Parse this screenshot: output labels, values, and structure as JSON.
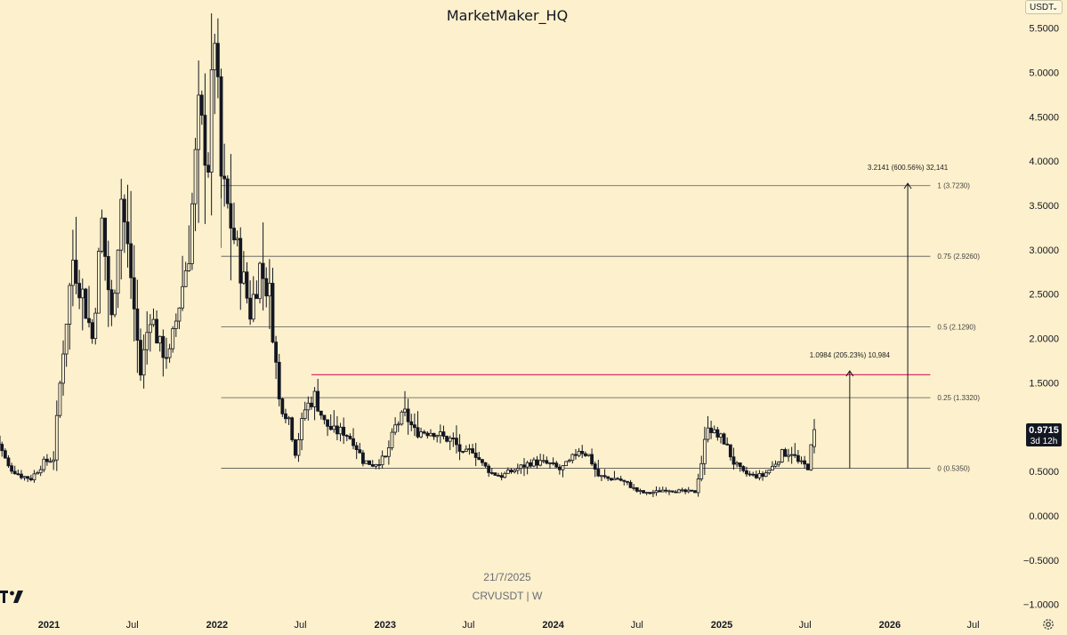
{
  "header": {
    "title": "MarketMaker_HQ",
    "currency": "USDT"
  },
  "footer": {
    "date": "21/7/2025",
    "symbol": "CRVUSDT | W"
  },
  "price_badge": {
    "price": "0.9715",
    "countdown": "3d 12h"
  },
  "colors": {
    "background": "#fdf0cc",
    "candle": "#131722",
    "resistance": "#e0306a",
    "grid_line": "#555555",
    "axis_text": "#131722"
  },
  "icons": {
    "logo": "tradingview-logo-icon",
    "settings": "gear-icon",
    "dropdown": "chevron-down-icon"
  },
  "chart_data": {
    "type": "candlestick",
    "symbol": "CRVUSDT",
    "timeframe": "W",
    "grid": false,
    "ylim": [
      -1.1,
      5.75
    ],
    "y_ticks": [
      "5.5000",
      "5.0000",
      "4.5000",
      "4.0000",
      "3.5000",
      "3.0000",
      "2.5000",
      "2.0000",
      "1.5000",
      "1.0000",
      "0.5000",
      "0.0000",
      "−0.5000",
      "−1.0000"
    ],
    "y_tick_values": [
      5.5,
      5.0,
      4.5,
      4.0,
      3.5,
      3.0,
      2.5,
      2.0,
      1.5,
      1.0,
      0.5,
      0.0,
      -0.5,
      -1.0
    ],
    "x_ticks": [
      {
        "label": "2021",
        "date": "2021-01-01"
      },
      {
        "label": "Jul",
        "date": "2021-07-01"
      },
      {
        "label": "2022",
        "date": "2022-01-01"
      },
      {
        "label": "Jul",
        "date": "2022-07-01"
      },
      {
        "label": "2023",
        "date": "2023-01-01"
      },
      {
        "label": "Jul",
        "date": "2023-07-01"
      },
      {
        "label": "2024",
        "date": "2024-01-01"
      },
      {
        "label": "Jul",
        "date": "2024-07-01"
      },
      {
        "label": "2025",
        "date": "2025-01-01"
      },
      {
        "label": "Jul",
        "date": "2025-07-01"
      },
      {
        "label": "2026",
        "date": "2026-01-01"
      },
      {
        "label": "Jul",
        "date": "2026-07-01"
      }
    ],
    "price_path": [
      [
        "2020-09-07",
        0.9
      ],
      [
        "2020-10-05",
        0.55
      ],
      [
        "2020-11-02",
        0.45
      ],
      [
        "2020-11-23",
        0.42
      ],
      [
        "2020-12-21",
        0.6
      ],
      [
        "2021-01-11",
        0.65
      ],
      [
        "2021-02-01",
        1.9
      ],
      [
        "2021-02-22",
        2.9
      ],
      [
        "2021-03-15",
        2.5
      ],
      [
        "2021-04-05",
        2.0
      ],
      [
        "2021-04-26",
        3.3
      ],
      [
        "2021-05-17",
        2.2
      ],
      [
        "2021-06-07",
        3.6
      ],
      [
        "2021-06-28",
        2.7
      ],
      [
        "2021-07-19",
        1.6
      ],
      [
        "2021-08-09",
        2.3
      ],
      [
        "2021-08-30",
        1.9
      ],
      [
        "2021-09-20",
        1.8
      ],
      [
        "2021-10-11",
        2.4
      ],
      [
        "2021-11-01",
        3.0
      ],
      [
        "2021-11-22",
        4.5
      ],
      [
        "2021-12-13",
        4.0
      ],
      [
        "2021-12-27",
        5.5
      ],
      [
        "2022-01-10",
        3.8
      ],
      [
        "2022-01-31",
        3.3
      ],
      [
        "2022-02-21",
        2.8
      ],
      [
        "2022-03-14",
        2.3
      ],
      [
        "2022-04-04",
        2.8
      ],
      [
        "2022-04-25",
        2.5
      ],
      [
        "2022-05-16",
        1.3
      ],
      [
        "2022-06-06",
        1.1
      ],
      [
        "2022-06-20",
        0.72
      ],
      [
        "2022-07-11",
        1.2
      ],
      [
        "2022-08-01",
        1.35
      ],
      [
        "2022-08-22",
        1.05
      ],
      [
        "2022-09-12",
        0.95
      ],
      [
        "2022-10-03",
        0.95
      ],
      [
        "2022-10-24",
        0.85
      ],
      [
        "2022-11-14",
        0.62
      ],
      [
        "2022-12-05",
        0.58
      ],
      [
        "2023-01-02",
        0.65
      ],
      [
        "2023-01-23",
        1.0
      ],
      [
        "2023-02-13",
        1.15
      ],
      [
        "2023-03-06",
        0.95
      ],
      [
        "2023-03-27",
        0.95
      ],
      [
        "2023-04-17",
        0.95
      ],
      [
        "2023-05-08",
        0.88
      ],
      [
        "2023-05-29",
        0.85
      ],
      [
        "2023-06-19",
        0.68
      ],
      [
        "2023-07-10",
        0.75
      ],
      [
        "2023-07-31",
        0.58
      ],
      [
        "2023-08-21",
        0.48
      ],
      [
        "2023-09-11",
        0.45
      ],
      [
        "2023-10-02",
        0.5
      ],
      [
        "2023-10-23",
        0.55
      ],
      [
        "2023-11-13",
        0.6
      ],
      [
        "2023-12-04",
        0.6
      ],
      [
        "2023-12-25",
        0.58
      ],
      [
        "2024-01-15",
        0.52
      ],
      [
        "2024-02-05",
        0.6
      ],
      [
        "2024-02-26",
        0.75
      ],
      [
        "2024-03-18",
        0.68
      ],
      [
        "2024-04-08",
        0.45
      ],
      [
        "2024-04-29",
        0.42
      ],
      [
        "2024-05-20",
        0.42
      ],
      [
        "2024-06-10",
        0.36
      ],
      [
        "2024-07-01",
        0.28
      ],
      [
        "2024-07-22",
        0.25
      ],
      [
        "2024-08-12",
        0.27
      ],
      [
        "2024-09-02",
        0.3
      ],
      [
        "2024-09-23",
        0.28
      ],
      [
        "2024-10-14",
        0.27
      ],
      [
        "2024-11-04",
        0.27
      ],
      [
        "2024-11-18",
        0.6
      ],
      [
        "2024-12-02",
        1.05
      ],
      [
        "2024-12-16",
        0.92
      ],
      [
        "2025-01-06",
        0.85
      ],
      [
        "2025-01-27",
        0.6
      ],
      [
        "2025-02-17",
        0.48
      ],
      [
        "2025-03-10",
        0.45
      ],
      [
        "2025-03-31",
        0.45
      ],
      [
        "2025-04-21",
        0.55
      ],
      [
        "2025-05-12",
        0.7
      ],
      [
        "2025-06-02",
        0.72
      ],
      [
        "2025-06-16",
        0.6
      ],
      [
        "2025-07-07",
        0.55
      ],
      [
        "2025-07-21",
        0.97
      ]
    ],
    "fib": {
      "x_start": "2022-01-10",
      "x_end": "2026-03-30",
      "levels": [
        {
          "ratio": 1,
          "price": 3.723,
          "label": "1 (3.7230)"
        },
        {
          "ratio": 0.75,
          "price": 2.926,
          "label": "0.75 (2.9260)"
        },
        {
          "ratio": 0.5,
          "price": 2.129,
          "label": "0.5 (2.1290)"
        },
        {
          "ratio": 0.25,
          "price": 1.332,
          "label": "0.25 (1.3320)"
        },
        {
          "ratio": 0,
          "price": 0.535,
          "label": "0 (0.5350)"
        }
      ]
    },
    "resistance_line": {
      "price": 1.59,
      "x_start": "2022-07-25",
      "x_end": "2026-03-30"
    },
    "projections": [
      {
        "label": "1.0984 (205.23%) 10,984",
        "date": "2025-10-06",
        "from": 0.535,
        "to": 1.6334
      },
      {
        "label": "3.2141 (600.56%) 32,141",
        "date": "2026-02-09",
        "from": 0.535,
        "to": 3.7491
      }
    ],
    "last_price": 0.9715
  }
}
